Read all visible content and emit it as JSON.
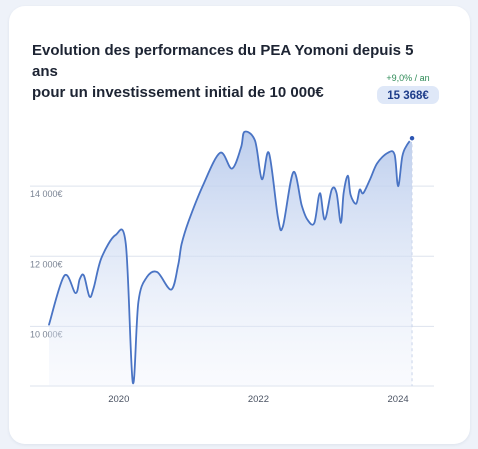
{
  "card": {
    "title_line1": "Evolution des performances du PEA Yomoni depuis 5 ans",
    "title_line2": "pour un investissement initial de 10 000€"
  },
  "chart_data": {
    "type": "area",
    "title": "Evolution des performances du PEA Yomoni depuis 5 ans pour un investissement initial de 10 000€",
    "xlabel": "",
    "ylabel": "",
    "x_ticks": [
      {
        "value": 2020,
        "label": "2020"
      },
      {
        "value": 2022,
        "label": "2022"
      },
      {
        "value": 2024,
        "label": "2024"
      }
    ],
    "y_ticks": [
      {
        "value": 10000,
        "label": "10 000€"
      },
      {
        "value": 12000,
        "label": "12 000€"
      },
      {
        "value": 14000,
        "label": "14 000€"
      }
    ],
    "xlim": [
      2019.0,
      2024.4
    ],
    "ylim": [
      8300,
      16800
    ],
    "grid": true,
    "line_color": "#4a74c4",
    "fill_color": "#c5d3ee",
    "x": [
      2019.0,
      2019.22,
      2019.38,
      2019.44,
      2019.5,
      2019.58,
      2019.64,
      2019.75,
      2019.95,
      2020.1,
      2020.2,
      2020.28,
      2020.4,
      2020.55,
      2020.75,
      2020.85,
      2020.9,
      2021.0,
      2021.2,
      2021.45,
      2021.62,
      2021.75,
      2021.8,
      2021.95,
      2022.05,
      2022.15,
      2022.28,
      2022.35,
      2022.5,
      2022.62,
      2022.7,
      2022.8,
      2022.88,
      2022.95,
      2023.05,
      2023.12,
      2023.18,
      2023.22,
      2023.28,
      2023.32,
      2023.4,
      2023.45,
      2023.5,
      2023.6,
      2023.7,
      2023.85,
      2023.95,
      2024.0,
      2024.06,
      2024.12,
      2024.2
    ],
    "y": [
      10050,
      11450,
      10950,
      11350,
      11450,
      10850,
      11100,
      11950,
      12600,
      12350,
      8400,
      10700,
      11400,
      11550,
      11050,
      11750,
      12350,
      13000,
      14000,
      14950,
      14500,
      15100,
      15550,
      15300,
      14200,
      14950,
      13100,
      12850,
      14400,
      13450,
      13050,
      12950,
      13800,
      13050,
      13900,
      13800,
      12950,
      13800,
      14300,
      13750,
      13500,
      13900,
      13800,
      14200,
      14650,
      14950,
      14900,
      14000,
      14850,
      15150,
      15368
    ],
    "final": {
      "x": 2024.2,
      "value": 15368,
      "value_label": "15 368€",
      "growth_label": "+9,0% / an"
    }
  }
}
